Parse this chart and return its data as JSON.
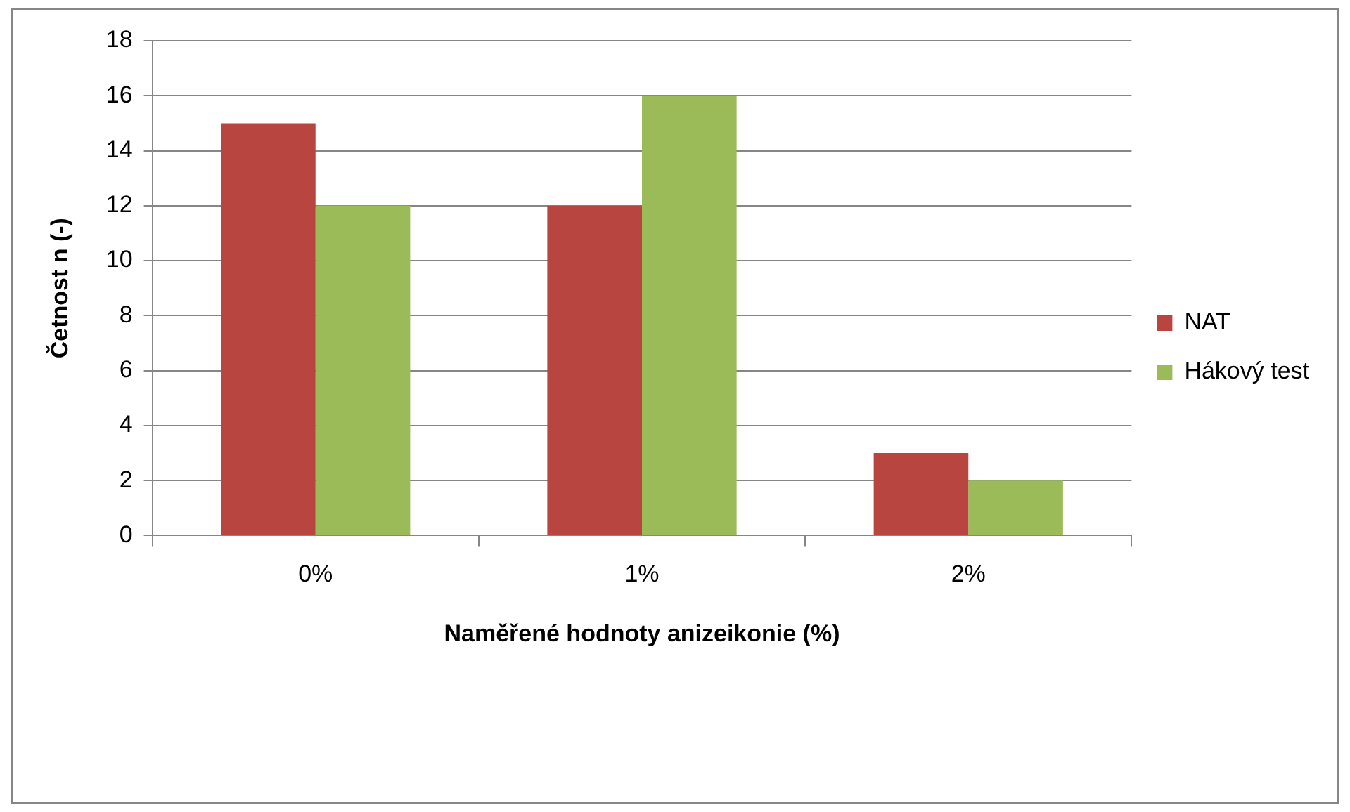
{
  "chart_data": {
    "type": "bar",
    "xlabel": "Naměřené hodnoty anizeikonie (%)",
    "ylabel": "Četnost n (-)",
    "categories": [
      "0%",
      "1%",
      "2%"
    ],
    "series": [
      {
        "name": "NAT",
        "color": "#b94541",
        "values": [
          15,
          12,
          3
        ]
      },
      {
        "name": "Hákový test",
        "color": "#9bbb59",
        "values": [
          12,
          16,
          2
        ]
      }
    ],
    "ylim": [
      0,
      18
    ],
    "yticks": [
      0,
      2,
      4,
      6,
      8,
      10,
      12,
      14,
      16,
      18
    ],
    "grid": "y",
    "legend": "right"
  }
}
